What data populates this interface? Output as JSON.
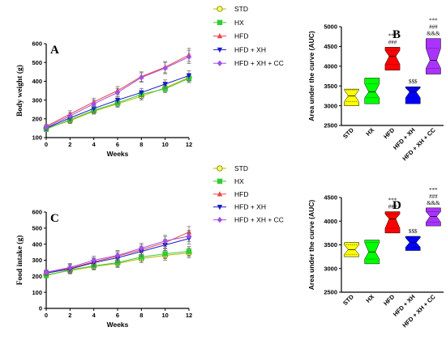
{
  "chart_data": [
    {
      "type": "line",
      "panel_label": "A",
      "xlabel": "Weeks",
      "ylabel": "Body weight (g)",
      "x": [
        0,
        2,
        4,
        6,
        8,
        10,
        12
      ],
      "xticks": [
        0,
        2,
        4,
        6,
        8,
        10,
        12
      ],
      "xlim": [
        0,
        12
      ],
      "ylim": [
        100,
        600
      ],
      "yticks": [
        100,
        200,
        300,
        400,
        500,
        600
      ],
      "legend_position": "top-right",
      "grid": false,
      "series": [
        {
          "name": "STD",
          "color": "#b8b800",
          "marker": "circle-open",
          "values": [
            150,
            190,
            240,
            280,
            320,
            365,
            420
          ],
          "errors": [
            12,
            15,
            15,
            18,
            20,
            20,
            22
          ]
        },
        {
          "name": "HX",
          "color": "#33cc33",
          "marker": "square",
          "values": [
            145,
            195,
            245,
            285,
            330,
            360,
            415
          ],
          "errors": [
            12,
            15,
            15,
            18,
            20,
            20,
            22
          ]
        },
        {
          "name": "HFD",
          "color": "#ee4444",
          "marker": "triangle-up",
          "values": [
            160,
            225,
            290,
            350,
            425,
            475,
            540
          ],
          "errors": [
            12,
            18,
            20,
            22,
            25,
            30,
            35
          ]
        },
        {
          "name": "HFD + XH",
          "color": "#1a1acc",
          "marker": "triangle-down",
          "values": [
            150,
            205,
            255,
            300,
            340,
            385,
            430
          ],
          "errors": [
            12,
            15,
            18,
            18,
            22,
            22,
            25
          ]
        },
        {
          "name": "HFD + XH + CC",
          "color": "#a050e6",
          "marker": "diamond",
          "values": [
            155,
            215,
            280,
            340,
            420,
            470,
            530
          ],
          "errors": [
            12,
            18,
            20,
            22,
            25,
            30,
            35
          ]
        }
      ]
    },
    {
      "type": "violin",
      "panel_label": "B",
      "ylabel": "Area under the curve (AUC)",
      "ylim": [
        2500,
        5000
      ],
      "yticks": [
        2500,
        3000,
        3500,
        4000,
        4500,
        5000
      ],
      "categories": [
        "STD",
        "HX",
        "HFD",
        "HFD + XH",
        "HFD + XH + CC"
      ],
      "groups": [
        {
          "name": "STD",
          "color": "#ffff00",
          "min": 3000,
          "q1": 3100,
          "median": 3250,
          "q3": 3400,
          "max": 3420,
          "annotations": []
        },
        {
          "name": "HX",
          "color": "#00ff00",
          "min": 3050,
          "q1": 3200,
          "median": 3350,
          "q3": 3550,
          "max": 3700,
          "annotations": []
        },
        {
          "name": "HFD",
          "color": "#ff0000",
          "min": 3900,
          "q1": 4050,
          "median": 4250,
          "q3": 4400,
          "max": 4480,
          "annotations": [
            "***",
            "###"
          ]
        },
        {
          "name": "HFD + XH",
          "color": "#0000ff",
          "min": 3050,
          "q1": 3200,
          "median": 3350,
          "q3": 3450,
          "max": 3480,
          "annotations": [
            "$$$"
          ]
        },
        {
          "name": "HFD + XH + CC",
          "color": "#aa33ff",
          "min": 3800,
          "q1": 3950,
          "median": 4150,
          "q3": 4450,
          "max": 4700,
          "annotations": [
            "***",
            "###",
            "&&&"
          ]
        }
      ]
    },
    {
      "type": "line",
      "panel_label": "C",
      "xlabel": "Weeks",
      "ylabel": "Food intake (g)",
      "x": [
        0,
        2,
        4,
        6,
        8,
        10,
        12
      ],
      "xticks": [
        0,
        2,
        4,
        6,
        8,
        10,
        12
      ],
      "xlim": [
        0,
        12
      ],
      "ylim": [
        0,
        600
      ],
      "yticks": [
        0,
        100,
        200,
        300,
        400,
        500,
        600
      ],
      "legend_position": "top-right",
      "grid": false,
      "series": [
        {
          "name": "STD",
          "color": "#b8b800",
          "marker": "circle-open",
          "values": [
            210,
            235,
            260,
            280,
            310,
            330,
            345
          ],
          "errors": [
            15,
            20,
            20,
            25,
            25,
            30,
            30
          ]
        },
        {
          "name": "HX",
          "color": "#33cc33",
          "marker": "square",
          "values": [
            205,
            240,
            265,
            285,
            320,
            340,
            355
          ],
          "errors": [
            15,
            20,
            20,
            25,
            25,
            30,
            30
          ]
        },
        {
          "name": "HFD",
          "color": "#ee4444",
          "marker": "triangle-up",
          "values": [
            225,
            250,
            290,
            325,
            365,
            410,
            475
          ],
          "errors": [
            15,
            25,
            25,
            30,
            30,
            35,
            35
          ]
        },
        {
          "name": "HFD + XH",
          "color": "#1a1acc",
          "marker": "triangle-down",
          "values": [
            220,
            245,
            285,
            315,
            355,
            395,
            435
          ],
          "errors": [
            15,
            25,
            25,
            30,
            30,
            35,
            35
          ]
        },
        {
          "name": "HFD + XH + CC",
          "color": "#a050e6",
          "marker": "diamond",
          "values": [
            225,
            255,
            300,
            330,
            375,
            420,
            450
          ],
          "errors": [
            15,
            25,
            25,
            30,
            30,
            35,
            35
          ]
        }
      ]
    },
    {
      "type": "violin",
      "panel_label": "D",
      "ylabel": "Area under the curve (AUC)",
      "ylim": [
        2500,
        4500
      ],
      "yticks": [
        2500,
        3000,
        3500,
        4000,
        4500
      ],
      "categories": [
        "STD",
        "HX",
        "HFD",
        "HFD + XH",
        "HFD + XH + CC"
      ],
      "groups": [
        {
          "name": "STD",
          "color": "#ffff00",
          "min": 3250,
          "q1": 3300,
          "median": 3400,
          "q3": 3500,
          "max": 3550,
          "annotations": []
        },
        {
          "name": "HX",
          "color": "#00ff00",
          "min": 3100,
          "q1": 3200,
          "median": 3350,
          "q3": 3550,
          "max": 3600,
          "annotations": []
        },
        {
          "name": "HFD",
          "color": "#ff0000",
          "min": 3750,
          "q1": 3850,
          "median": 4050,
          "q3": 4150,
          "max": 4200,
          "annotations": [
            "***",
            "###"
          ]
        },
        {
          "name": "HFD + XH",
          "color": "#0000ff",
          "min": 3380,
          "q1": 3450,
          "median": 3550,
          "q3": 3650,
          "max": 3680,
          "annotations": [
            "$$$"
          ]
        },
        {
          "name": "HFD + XH + CC",
          "color": "#aa33ff",
          "min": 3900,
          "q1": 3980,
          "median": 4100,
          "q3": 4200,
          "max": 4280,
          "annotations": [
            "***",
            "###",
            "&&&"
          ]
        }
      ]
    }
  ]
}
